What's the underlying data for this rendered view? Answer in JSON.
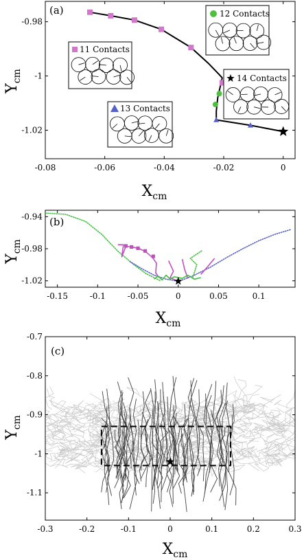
{
  "chart_data": [
    {
      "type": "line",
      "panel_label": "(a)",
      "xlabel": "X",
      "xlabel_sub": "cm",
      "ylabel": "Y",
      "ylabel_sub": "cm",
      "xlim": [
        -0.08,
        0.004
      ],
      "ylim": [
        -1.0305,
        -0.9725
      ],
      "xticks": [
        -0.08,
        -0.06,
        -0.04,
        -0.02,
        0
      ],
      "xtick_labels": [
        "-0.08",
        "-0.06",
        "-0.04",
        "-0.02",
        "0"
      ],
      "yticks": [
        -0.98,
        -1.0,
        -1.02
      ],
      "ytick_labels": [
        "-0.98",
        "-1",
        "-1.02"
      ],
      "grid": false,
      "path": {
        "x": [
          -0.065,
          -0.058,
          -0.05,
          -0.041,
          -0.031,
          -0.025,
          -0.0215,
          -0.0205,
          -0.022,
          -0.0225,
          -0.0225,
          -0.011,
          0
        ],
        "y": [
          -0.9765,
          -0.9778,
          -0.9794,
          -0.9828,
          -0.9895,
          -0.9955,
          -0.9995,
          -1.0007,
          -1.008,
          -1.013,
          -1.0162,
          -1.0182,
          -1.0205
        ]
      },
      "series": [
        {
          "name": "11 Contacts",
          "marker": "square",
          "color": "#d278cc",
          "x": [
            -0.065,
            -0.058,
            -0.05,
            -0.041,
            -0.031,
            -0.0205
          ],
          "y": [
            -0.9765,
            -0.9778,
            -0.9794,
            -0.9828,
            -0.9895,
            -1.0025
          ]
        },
        {
          "name": "12 Contacts",
          "marker": "circle",
          "color": "#4fbf3f",
          "x": [
            -0.0215,
            -0.0228
          ],
          "y": [
            -1.0065,
            -1.0105
          ]
        },
        {
          "name": "13 Contacts",
          "marker": "triangle",
          "color": "#5560c8",
          "x": [
            -0.0225,
            -0.011
          ],
          "y": [
            -1.0162,
            -1.0182
          ]
        },
        {
          "name": "14 Contacts",
          "marker": "star",
          "color": "#000000",
          "x": [
            0
          ],
          "y": [
            -1.0205
          ]
        }
      ],
      "insets": [
        {
          "label": "11 Contacts",
          "marker": "square",
          "color": "#d278cc",
          "discs": 9
        },
        {
          "label": "12 Contacts",
          "marker": "circle",
          "color": "#4fbf3f",
          "discs": 9
        },
        {
          "label": "13 Contacts",
          "marker": "triangle",
          "color": "#5560c8",
          "discs": 9
        },
        {
          "label": "14 Contacts",
          "marker": "star",
          "color": "#000000",
          "discs": 9
        }
      ]
    },
    {
      "type": "line",
      "panel_label": "(b)",
      "xlabel": "X",
      "xlabel_sub": "cm",
      "ylabel": "Y",
      "ylabel_sub": "cm",
      "xlim": [
        -0.165,
        0.145
      ],
      "ylim": [
        -1.028,
        -0.932
      ],
      "xticks": [
        -0.15,
        -0.1,
        -0.05,
        0,
        0.05,
        0.1
      ],
      "xtick_labels": [
        "-0.15",
        "-0.1",
        "-0.05",
        "0",
        "0.05",
        "0.1"
      ],
      "yticks": [
        -0.94,
        -0.98,
        -1.02
      ],
      "ytick_labels": [
        "-0.94",
        "-0.98",
        "-1.02"
      ],
      "grid": false,
      "series": [
        {
          "style": "dotted",
          "color": "#3fbf3f",
          "x": [
            -0.165,
            -0.14,
            -0.115,
            -0.095,
            -0.075,
            -0.055,
            -0.04,
            -0.028,
            -0.022
          ],
          "y": [
            -0.9355,
            -0.937,
            -0.946,
            -0.962,
            -0.983,
            -1.0,
            -1.011,
            -1.017,
            -1.02
          ]
        },
        {
          "style": "dotted",
          "color": "#5560c8",
          "x": [
            0.005,
            0.02,
            0.04,
            0.06,
            0.08,
            0.1,
            0.12,
            0.14
          ],
          "y": [
            -1.019,
            -1.013,
            -1.003,
            -0.991,
            -0.98,
            -0.97,
            -0.962,
            -0.956
          ]
        },
        {
          "style": "dotted",
          "color": "#5560c8",
          "x": [
            -0.06,
            -0.045,
            -0.03,
            -0.015,
            0
          ],
          "y": [
            -0.996,
            -1.005,
            -1.013,
            -1.018,
            -1.0205
          ]
        },
        {
          "style": "solid",
          "color": "#c14fc0",
          "x": [
            -0.075,
            -0.068,
            -0.07,
            -0.065,
            -0.056,
            -0.048,
            -0.04,
            -0.032,
            -0.027,
            -0.028,
            -0.024
          ],
          "y": [
            -0.975,
            -0.975,
            -0.99,
            -0.977,
            -0.978,
            -0.98,
            -0.984,
            -0.991,
            -0.998,
            -1.01,
            -1.016
          ]
        },
        {
          "style": "solid",
          "color": "#c14fc0",
          "x": [
            -0.012,
            -0.006,
            -0.01,
            -0.004
          ],
          "y": [
            -0.995,
            -1.008,
            -1.016,
            -1.019
          ]
        },
        {
          "style": "solid",
          "color": "#c14fc0",
          "x": [
            0.005,
            0.008,
            0.012
          ],
          "y": [
            -0.993,
            -1.006,
            -1.017
          ]
        },
        {
          "style": "solid",
          "color": "#c14fc0",
          "x": [
            0.028,
            0.036,
            0.045
          ],
          "y": [
            -1.012,
            -1.003,
            -0.992
          ]
        },
        {
          "style": "dotted",
          "color": "#3fbf3f",
          "x": [
            0.018,
            0.023,
            0.015,
            0.03
          ],
          "y": [
            -1.016,
            -1.0,
            -0.992,
            -0.982
          ]
        },
        {
          "style": "solid",
          "color": "#3fbf3f",
          "x": [
            -0.03,
            -0.025,
            -0.02,
            -0.015,
            -0.01,
            -0.005,
            0.005,
            0.012,
            0.02,
            0.028
          ],
          "y": [
            -1.018,
            -1.014,
            -1.019,
            -1.013,
            -1.018,
            -1.015,
            -1.017,
            -1.013,
            -1.018,
            -1.016
          ]
        }
      ],
      "markers": [
        {
          "marker": "square",
          "color": "#c14fc0",
          "x": [
            -0.065,
            -0.058,
            -0.05,
            -0.041,
            -0.031
          ],
          "y": [
            -0.9765,
            -0.9778,
            -0.9794,
            -0.9828,
            -0.9895
          ]
        },
        {
          "marker": "star",
          "color": "#000000",
          "x": [
            0
          ],
          "y": [
            -1.0205
          ]
        }
      ]
    },
    {
      "type": "line",
      "panel_label": "(c)",
      "xlabel": "X",
      "xlabel_sub": "cm",
      "ylabel": "Y",
      "ylabel_sub": "cm",
      "xlim": [
        -0.3,
        0.3
      ],
      "ylim": [
        -1.17,
        -0.7
      ],
      "xticks": [
        -0.3,
        -0.2,
        -0.1,
        0,
        0.1,
        0.2,
        0.3
      ],
      "xtick_labels": [
        "-0.3",
        "-0.2",
        "-0.1",
        "0",
        "0.1",
        "0.2",
        "0.3"
      ],
      "yticks": [
        -0.7,
        -0.8,
        -0.9,
        -1.0,
        -1.1
      ],
      "ytick_labels": [
        "-0.7",
        "-0.8",
        "-0.9",
        "-1",
        "-1.1"
      ],
      "grid": false,
      "background_trajectories_color": "#c8c8c8",
      "foreground_trajectories_color": "#404040",
      "highlight_box": {
        "x": [
          -0.165,
          0.145
        ],
        "y": [
          -1.03,
          -0.93
        ],
        "style": "dashed"
      },
      "markers": [
        {
          "marker": "star",
          "color": "#000000",
          "x": [
            0
          ],
          "y": [
            -1.0205
          ]
        }
      ]
    }
  ]
}
